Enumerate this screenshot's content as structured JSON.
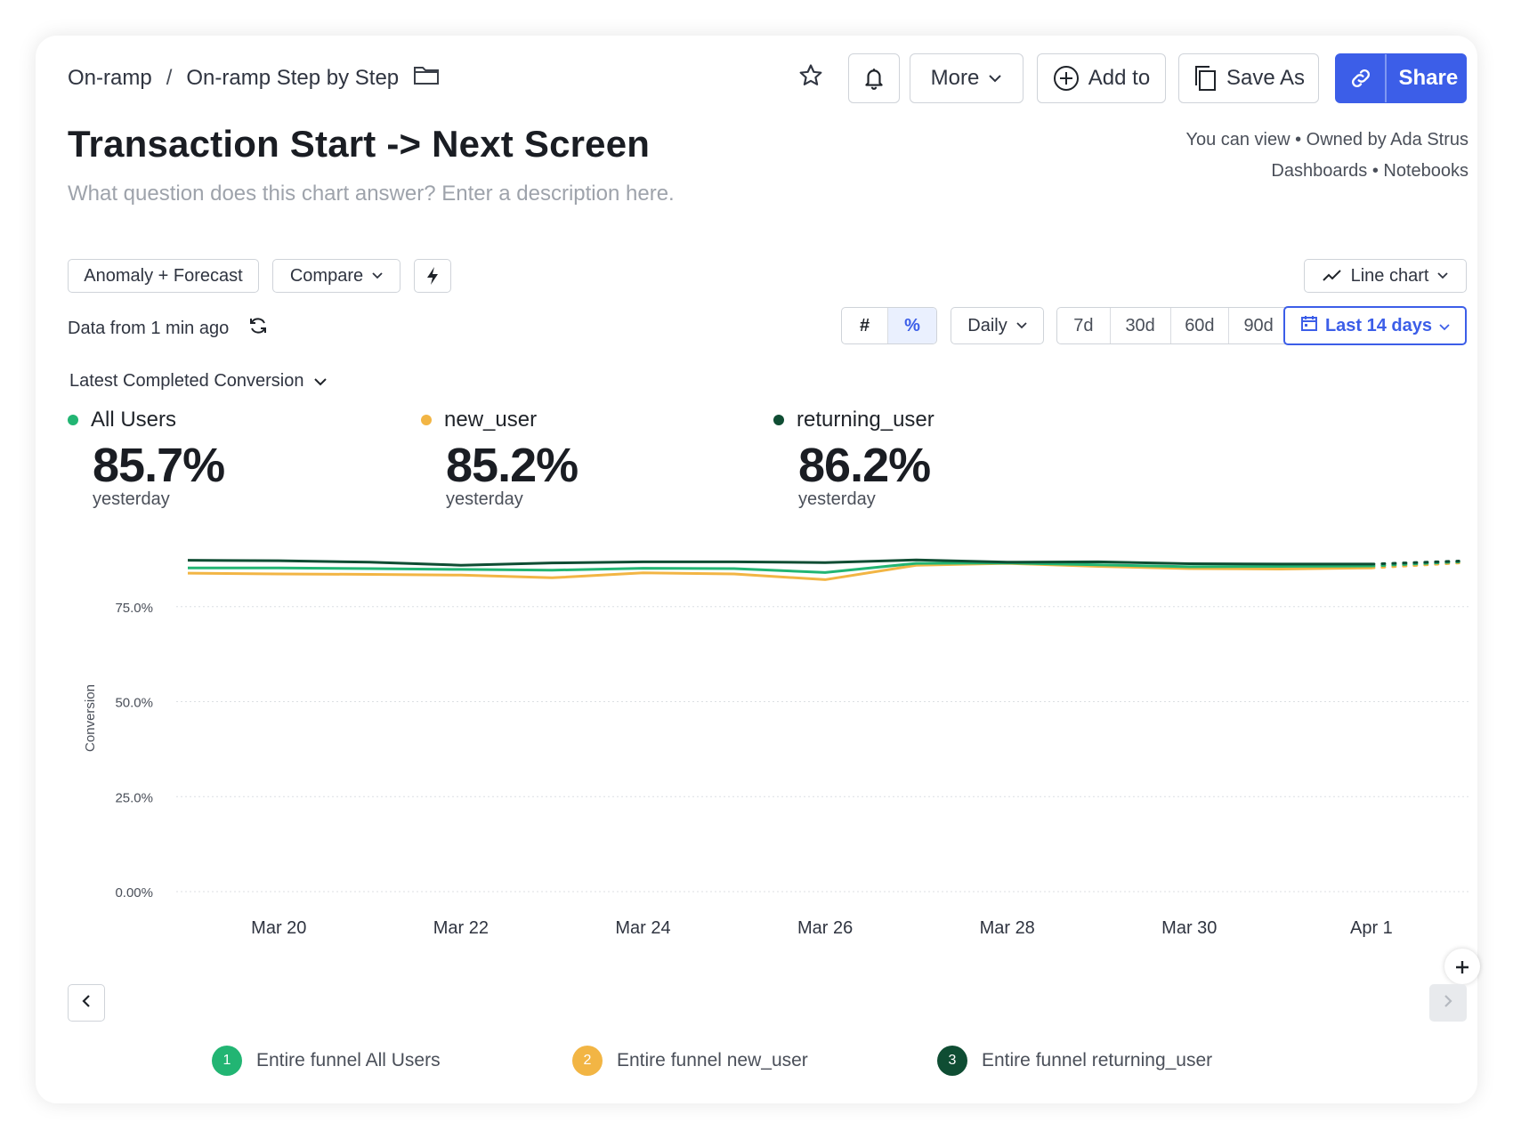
{
  "breadcrumb": {
    "parent": "On-ramp",
    "separator": "/",
    "current": "On-ramp Step by Step"
  },
  "toolbar": {
    "more_label": "More",
    "add_to_label": "Add to",
    "save_as_label": "Save As",
    "share_label": "Share"
  },
  "header": {
    "title": "Transaction Start -> Next Screen",
    "description_placeholder": "What question does this chart answer? Enter a description here.",
    "permissions": "You can view • Owned by Ada Strus",
    "links": "Dashboards • Notebooks"
  },
  "controls": {
    "anomaly_forecast": "Anomaly + Forecast",
    "compare": "Compare",
    "chart_type": "Line chart",
    "data_freshness": "Data from 1 min ago",
    "unit_count": "#",
    "unit_percent": "%",
    "interval": "Daily",
    "ranges": [
      "7d",
      "30d",
      "60d",
      "90d"
    ],
    "selected_range": "Last 14 days",
    "metric_selector": "Latest Completed Conversion"
  },
  "kpis": [
    {
      "name": "All Users",
      "value": "85.7%",
      "sub": "yesterday",
      "color": "#22b573"
    },
    {
      "name": "new_user",
      "value": "85.2%",
      "sub": "yesterday",
      "color": "#f2b544"
    },
    {
      "name": "returning_user",
      "value": "86.2%",
      "sub": "yesterday",
      "color": "#0f4d33"
    }
  ],
  "legend": [
    {
      "num": "1",
      "label": "Entire funnel All Users",
      "color": "#22b573"
    },
    {
      "num": "2",
      "label": "Entire funnel new_user",
      "color": "#f2b544"
    },
    {
      "num": "3",
      "label": "Entire funnel returning_user",
      "color": "#0f4d33"
    }
  ],
  "chart_data": {
    "type": "line",
    "ylabel": "Conversion",
    "xlabel": "",
    "ylim": [
      0,
      100
    ],
    "yticks": [
      0,
      25,
      50,
      75
    ],
    "ytick_labels": [
      "0.00%",
      "25.0%",
      "50.0%",
      "75.0%"
    ],
    "x": [
      "Mar 19",
      "Mar 20",
      "Mar 21",
      "Mar 22",
      "Mar 23",
      "Mar 24",
      "Mar 25",
      "Mar 26",
      "Mar 27",
      "Mar 28",
      "Mar 29",
      "Mar 30",
      "Mar 31",
      "Apr 1"
    ],
    "xtick_labels": [
      "Mar 20",
      "Mar 22",
      "Mar 24",
      "Mar 26",
      "Mar 28",
      "Mar 30",
      "Apr 1"
    ],
    "forecast_x": [
      "Apr 2"
    ],
    "series": [
      {
        "name": "All Users",
        "color": "#22b573",
        "values": [
          85.2,
          85.2,
          85.0,
          84.8,
          84.6,
          85.1,
          85.0,
          84.0,
          86.4,
          86.5,
          86.0,
          85.5,
          85.6,
          85.7
        ],
        "forecast": [
          86.8
        ]
      },
      {
        "name": "new_user",
        "color": "#f2b544",
        "values": [
          83.8,
          83.6,
          83.5,
          83.3,
          82.6,
          83.9,
          83.6,
          82.1,
          85.9,
          86.4,
          85.6,
          85.0,
          84.9,
          85.2
        ],
        "forecast": [
          86.5
        ]
      },
      {
        "name": "returning_user",
        "color": "#0f4d33",
        "values": [
          87.2,
          87.1,
          86.7,
          85.9,
          86.5,
          86.8,
          86.8,
          86.6,
          87.3,
          86.7,
          86.8,
          86.3,
          86.2,
          86.2
        ],
        "forecast": [
          87.0
        ]
      }
    ]
  }
}
